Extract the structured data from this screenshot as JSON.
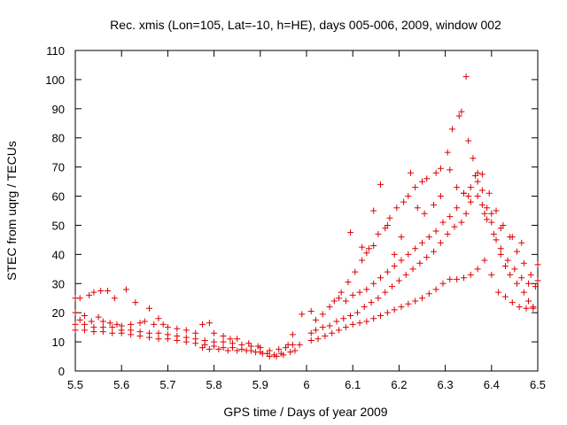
{
  "chart_data": {
    "type": "scatter",
    "title": "Rec. xmis (Lon=105, Lat=-10, h=HE), days 005-006, 2009, window 002",
    "xlabel": "GPS time / Days of year 2009",
    "ylabel": "STEC from uqrg / TECUs",
    "xlim": [
      5.5,
      6.5
    ],
    "ylim": [
      0,
      110
    ],
    "xticks": [
      "5.5",
      "5.6",
      "5.7",
      "5.8",
      "5.9",
      "6",
      "6.1",
      "6.2",
      "6.3",
      "6.4",
      "6.5"
    ],
    "xtick_values": [
      5.5,
      5.6,
      5.7,
      5.8,
      5.9,
      6.0,
      6.1,
      6.2,
      6.3,
      6.4,
      6.5
    ],
    "yticks": [
      "0",
      "10",
      "20",
      "30",
      "40",
      "50",
      "60",
      "70",
      "80",
      "90",
      "100",
      "110"
    ],
    "ytick_values": [
      0,
      10,
      20,
      30,
      40,
      50,
      60,
      70,
      80,
      90,
      100,
      110
    ],
    "grid": false,
    "legend": "none",
    "marker": "plus",
    "color": "#dd0000",
    "series": [
      {
        "points": [
          [
            5.5,
            25
          ],
          [
            5.51,
            25
          ],
          [
            5.53,
            26
          ],
          [
            5.54,
            27
          ],
          [
            5.555,
            27.5
          ],
          [
            5.57,
            27.5
          ],
          [
            5.585,
            25
          ],
          [
            5.61,
            28
          ],
          [
            5.63,
            23.5
          ],
          [
            5.66,
            21.5
          ],
          [
            5.68,
            18
          ],
          [
            5.5,
            20
          ],
          [
            5.51,
            17.5
          ],
          [
            5.52,
            19
          ],
          [
            5.535,
            17
          ],
          [
            5.55,
            18.5
          ],
          [
            5.56,
            17
          ],
          [
            5.575,
            16.5
          ],
          [
            5.59,
            16
          ],
          [
            5.6,
            15.5
          ],
          [
            5.62,
            16
          ],
          [
            5.64,
            16.5
          ],
          [
            5.65,
            17
          ],
          [
            5.67,
            16
          ],
          [
            5.69,
            16
          ],
          [
            5.7,
            15
          ],
          [
            5.72,
            14.5
          ],
          [
            5.74,
            14
          ],
          [
            5.76,
            13
          ],
          [
            5.775,
            16
          ],
          [
            5.79,
            16.5
          ],
          [
            5.8,
            13
          ],
          [
            5.82,
            12
          ],
          [
            5.835,
            11
          ],
          [
            5.85,
            11
          ],
          [
            5.5,
            16
          ],
          [
            5.52,
            16
          ],
          [
            5.54,
            15
          ],
          [
            5.56,
            15
          ],
          [
            5.58,
            15
          ],
          [
            5.6,
            14
          ],
          [
            5.62,
            14
          ],
          [
            5.64,
            13.5
          ],
          [
            5.66,
            13
          ],
          [
            5.68,
            13
          ],
          [
            5.7,
            12.5
          ],
          [
            5.72,
            12
          ],
          [
            5.74,
            11.5
          ],
          [
            5.76,
            11
          ],
          [
            5.78,
            10.5
          ],
          [
            5.8,
            10
          ],
          [
            5.82,
            10
          ],
          [
            5.84,
            9.5
          ],
          [
            5.86,
            9
          ],
          [
            5.88,
            8.5
          ],
          [
            5.9,
            8
          ],
          [
            5.92,
            7
          ],
          [
            5.94,
            7.5
          ],
          [
            5.955,
            8
          ],
          [
            5.97,
            9
          ],
          [
            5.5,
            14
          ],
          [
            5.52,
            14
          ],
          [
            5.54,
            13.5
          ],
          [
            5.56,
            13.5
          ],
          [
            5.58,
            13
          ],
          [
            5.6,
            13
          ],
          [
            5.62,
            12.5
          ],
          [
            5.64,
            12
          ],
          [
            5.66,
            11.5
          ],
          [
            5.68,
            11
          ],
          [
            5.7,
            11
          ],
          [
            5.72,
            10.5
          ],
          [
            5.74,
            10
          ],
          [
            5.76,
            9.5
          ],
          [
            5.78,
            9
          ],
          [
            5.8,
            8.5
          ],
          [
            5.82,
            8
          ],
          [
            5.84,
            8
          ],
          [
            5.86,
            7.5
          ],
          [
            5.88,
            7
          ],
          [
            5.9,
            6.5
          ],
          [
            5.915,
            6
          ],
          [
            5.93,
            5.5
          ],
          [
            5.945,
            6
          ],
          [
            5.775,
            8
          ],
          [
            5.79,
            7.5
          ],
          [
            5.81,
            7.5
          ],
          [
            5.83,
            7
          ],
          [
            5.85,
            7
          ],
          [
            5.87,
            7
          ],
          [
            5.89,
            6.5
          ],
          [
            5.905,
            6
          ],
          [
            5.92,
            5
          ],
          [
            5.935,
            5
          ],
          [
            5.95,
            5.5
          ],
          [
            5.965,
            6.5
          ],
          [
            5.975,
            7
          ],
          [
            5.875,
            9.5
          ],
          [
            5.895,
            8.5
          ],
          [
            5.96,
            9
          ],
          [
            5.97,
            12.5
          ],
          [
            5.985,
            9
          ],
          [
            5.99,
            19.5
          ],
          [
            6.01,
            20.5
          ],
          [
            6.02,
            17.5
          ],
          [
            6.035,
            19.5
          ],
          [
            6.05,
            22
          ],
          [
            6.06,
            24
          ],
          [
            6.075,
            27
          ],
          [
            6.09,
            30.5
          ],
          [
            6.105,
            34
          ],
          [
            6.12,
            38
          ],
          [
            6.13,
            40.5
          ],
          [
            6.145,
            43
          ],
          [
            6.155,
            47
          ],
          [
            6.17,
            49
          ],
          [
            6.18,
            52.5
          ],
          [
            6.195,
            56
          ],
          [
            6.21,
            58
          ],
          [
            6.22,
            60
          ],
          [
            6.235,
            63
          ],
          [
            6.25,
            65
          ],
          [
            6.26,
            66
          ],
          [
            6.28,
            68
          ],
          [
            6.29,
            69.5
          ],
          [
            6.305,
            75
          ],
          [
            6.315,
            83
          ],
          [
            6.33,
            87.5
          ],
          [
            6.335,
            89
          ],
          [
            6.345,
            101
          ],
          [
            6.35,
            79
          ],
          [
            6.36,
            73
          ],
          [
            6.37,
            68
          ],
          [
            6.38,
            62
          ],
          [
            6.39,
            56
          ],
          [
            6.4,
            51
          ],
          [
            6.41,
            45
          ],
          [
            6.42,
            40
          ],
          [
            6.43,
            36
          ],
          [
            6.44,
            33
          ],
          [
            6.455,
            30
          ],
          [
            6.47,
            27
          ],
          [
            6.48,
            24
          ],
          [
            6.49,
            22
          ],
          [
            6.01,
            13
          ],
          [
            6.02,
            14
          ],
          [
            6.035,
            15
          ],
          [
            6.05,
            15.5
          ],
          [
            6.065,
            17
          ],
          [
            6.08,
            18
          ],
          [
            6.095,
            19
          ],
          [
            6.11,
            20
          ],
          [
            6.125,
            22
          ],
          [
            6.14,
            23.5
          ],
          [
            6.155,
            25
          ],
          [
            6.17,
            27
          ],
          [
            6.185,
            29
          ],
          [
            6.2,
            31
          ],
          [
            6.215,
            33
          ],
          [
            6.23,
            35
          ],
          [
            6.245,
            37
          ],
          [
            6.26,
            39
          ],
          [
            6.275,
            41
          ],
          [
            6.29,
            44
          ],
          [
            6.305,
            47
          ],
          [
            6.32,
            49.5
          ],
          [
            6.335,
            51
          ],
          [
            6.345,
            54
          ],
          [
            6.355,
            58
          ],
          [
            6.37,
            60
          ],
          [
            6.38,
            57
          ],
          [
            6.39,
            52
          ],
          [
            6.405,
            47
          ],
          [
            6.42,
            42
          ],
          [
            6.435,
            38
          ],
          [
            6.45,
            35
          ],
          [
            6.465,
            32
          ],
          [
            6.48,
            30
          ],
          [
            6.495,
            29
          ],
          [
            6.01,
            10.5
          ],
          [
            6.025,
            11
          ],
          [
            6.04,
            12
          ],
          [
            6.055,
            13
          ],
          [
            6.07,
            14
          ],
          [
            6.085,
            15
          ],
          [
            6.1,
            16
          ],
          [
            6.115,
            16.5
          ],
          [
            6.13,
            17
          ],
          [
            6.145,
            18
          ],
          [
            6.16,
            19
          ],
          [
            6.175,
            20
          ],
          [
            6.19,
            21
          ],
          [
            6.205,
            22
          ],
          [
            6.22,
            23
          ],
          [
            6.235,
            24
          ],
          [
            6.25,
            25
          ],
          [
            6.265,
            26.5
          ],
          [
            6.28,
            28
          ],
          [
            6.295,
            30
          ],
          [
            6.31,
            31.5
          ],
          [
            6.325,
            31.5
          ],
          [
            6.34,
            32
          ],
          [
            6.355,
            33
          ],
          [
            6.37,
            35
          ],
          [
            6.385,
            38
          ],
          [
            6.4,
            33
          ],
          [
            6.415,
            27
          ],
          [
            6.43,
            25.5
          ],
          [
            6.445,
            23.5
          ],
          [
            6.46,
            22
          ],
          [
            6.475,
            21.5
          ],
          [
            6.49,
            21.5
          ],
          [
            6.07,
            25
          ],
          [
            6.085,
            24
          ],
          [
            6.1,
            26
          ],
          [
            6.115,
            27
          ],
          [
            6.13,
            28
          ],
          [
            6.145,
            30
          ],
          [
            6.16,
            32
          ],
          [
            6.175,
            34
          ],
          [
            6.19,
            36
          ],
          [
            6.205,
            38
          ],
          [
            6.22,
            40
          ],
          [
            6.235,
            42
          ],
          [
            6.25,
            44
          ],
          [
            6.265,
            46
          ],
          [
            6.28,
            48
          ],
          [
            6.295,
            51
          ],
          [
            6.31,
            53
          ],
          [
            6.325,
            56
          ],
          [
            6.34,
            61
          ],
          [
            6.355,
            63
          ],
          [
            6.37,
            65
          ],
          [
            6.38,
            67.5
          ],
          [
            6.395,
            61
          ],
          [
            6.41,
            55
          ],
          [
            6.425,
            50
          ],
          [
            6.44,
            46
          ],
          [
            6.455,
            41
          ],
          [
            6.47,
            37
          ],
          [
            6.485,
            33
          ],
          [
            6.5,
            31
          ],
          [
            6.095,
            47.5
          ],
          [
            6.12,
            42.5
          ],
          [
            6.135,
            42
          ],
          [
            6.145,
            55
          ],
          [
            6.16,
            64
          ],
          [
            6.175,
            50
          ],
          [
            6.19,
            40
          ],
          [
            6.205,
            46
          ],
          [
            6.225,
            68
          ],
          [
            6.24,
            56
          ],
          [
            6.255,
            54
          ],
          [
            6.275,
            57
          ],
          [
            6.29,
            60
          ],
          [
            6.31,
            69
          ],
          [
            6.325,
            63
          ],
          [
            6.34,
            61
          ],
          [
            6.35,
            60
          ],
          [
            6.365,
            67
          ],
          [
            6.385,
            54
          ],
          [
            6.4,
            54
          ],
          [
            6.42,
            49
          ],
          [
            6.445,
            46
          ],
          [
            6.465,
            44
          ],
          [
            6.5,
            36.5
          ]
        ]
      }
    ]
  }
}
